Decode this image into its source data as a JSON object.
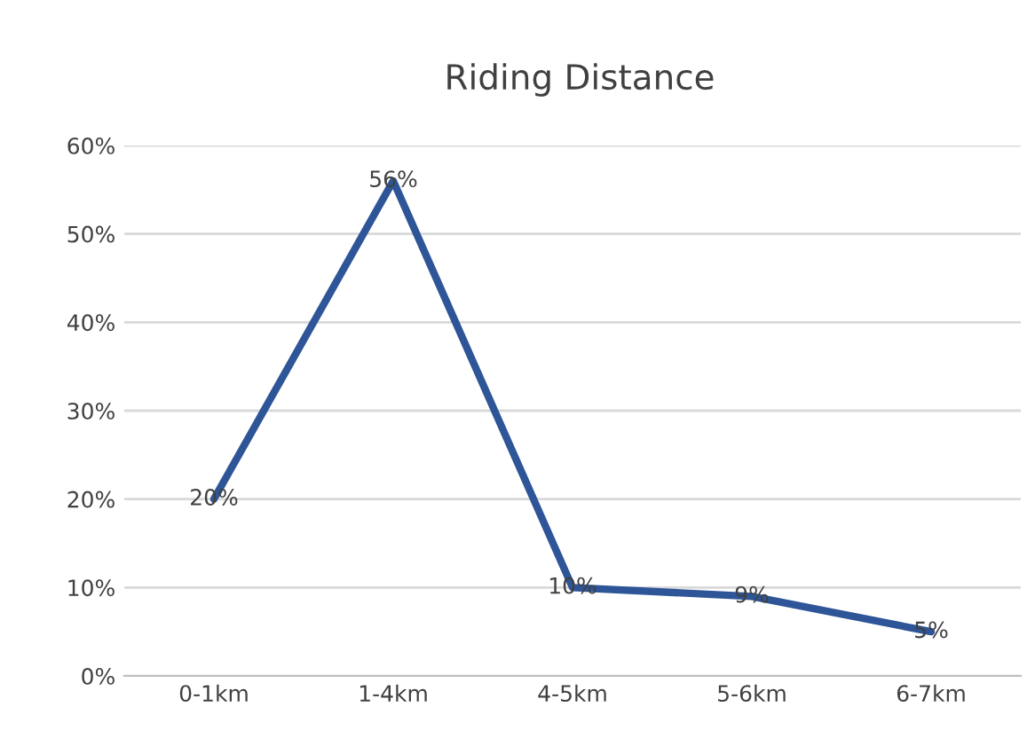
{
  "chart_data": {
    "type": "line",
    "title": "Riding Distance",
    "categories": [
      "0-1km",
      "1-4km",
      "4-5km",
      "5-6km",
      "6-7km"
    ],
    "series": [
      {
        "color": "#2e5597",
        "values": [
          20,
          56,
          10,
          9,
          5
        ]
      }
    ],
    "value_labels": [
      "20%",
      "56%",
      "10%",
      "9%",
      "5%"
    ],
    "ylim": [
      0,
      60
    ],
    "yticks": [
      {
        "value": 0,
        "label": "0%"
      },
      {
        "value": 10,
        "label": "10%"
      },
      {
        "value": 20,
        "label": "20%"
      },
      {
        "value": 30,
        "label": "30%"
      },
      {
        "value": 40,
        "label": "40%"
      },
      {
        "value": 50,
        "label": "50%"
      },
      {
        "value": 60,
        "label": "60%"
      }
    ],
    "grid": "y",
    "legend": false,
    "marker": "none",
    "line_style": "solid"
  }
}
